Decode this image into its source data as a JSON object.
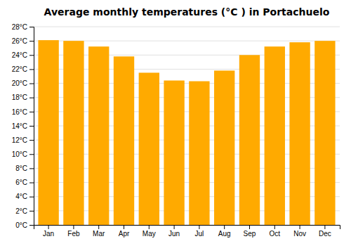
{
  "chart_data": {
    "type": "bar",
    "title": "Average monthly temperatures (°C ) in Portachuelo",
    "categories": [
      "Jan",
      "Feb",
      "Mar",
      "Apr",
      "May",
      "Jun",
      "Jul",
      "Aug",
      "Sep",
      "Oct",
      "Nov",
      "Dec"
    ],
    "values": [
      26.1,
      26.0,
      25.2,
      23.8,
      21.5,
      20.4,
      20.3,
      21.8,
      24.0,
      25.2,
      25.8,
      26.0
    ],
    "color": "#FFAA00",
    "ylim": [
      0,
      28
    ],
    "yticks": [
      {
        "value": 0,
        "label": "0°C"
      },
      {
        "value": 2,
        "label": "2°C"
      },
      {
        "value": 4,
        "label": "4°C"
      },
      {
        "value": 6,
        "label": "6°C"
      },
      {
        "value": 8,
        "label": "8°C"
      },
      {
        "value": 10,
        "label": "10°C"
      },
      {
        "value": 12,
        "label": "12°C"
      },
      {
        "value": 14,
        "label": "14°C"
      },
      {
        "value": 16,
        "label": "16°C"
      },
      {
        "value": 18,
        "label": "18°C"
      },
      {
        "value": 20,
        "label": "20°C"
      },
      {
        "value": 22,
        "label": "22°C"
      },
      {
        "value": 24,
        "label": "24°C"
      },
      {
        "value": 26,
        "label": "26°C"
      },
      {
        "value": 28,
        "label": "28°C"
      }
    ],
    "grid": true
  }
}
